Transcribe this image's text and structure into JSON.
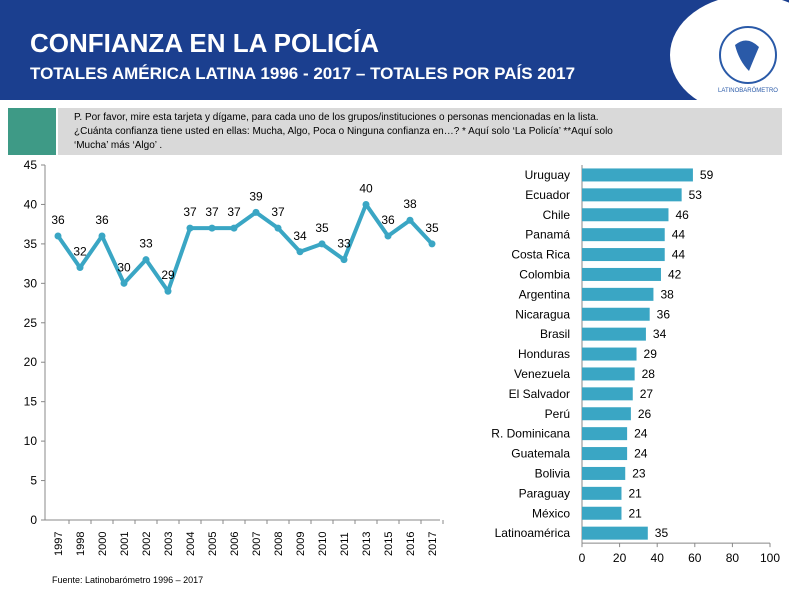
{
  "header": {
    "title": "CONFIANZA EN LA POLICÍA",
    "subtitle": "TOTALES AMÉRICA LATINA 1996 - 2017 – TOTALES POR PAÍS 2017",
    "logo": "LATINOBARÓMETRO",
    "question": [
      "P. Por favor, mire esta tarjeta y dígame, para cada uno de los grupos/instituciones o personas mencionadas en la lista.",
      "¿Cuánta confianza tiene usted en ellas: Mucha, Algo, Poca o Ninguna confianza en…? * Aquí solo ‘La Policía’ **Aquí solo",
      "‘Mucha’ más ‘Algo’ ."
    ],
    "source": "Fuente: Latinobarómetro 1996 – 2017"
  },
  "chart_data": [
    {
      "type": "line",
      "color": "#3aa6c4",
      "categories": [
        "1997",
        "1998",
        "2000",
        "2001",
        "2002",
        "2003",
        "2004",
        "2005",
        "2006",
        "2007",
        "2008",
        "2009",
        "2010",
        "2011",
        "2013",
        "2015",
        "2016",
        "2017"
      ],
      "values": [
        36,
        32,
        36,
        30,
        33,
        29,
        37,
        37,
        37,
        39,
        37,
        34,
        35,
        33,
        40,
        36,
        38,
        35
      ],
      "ylim": [
        0,
        45
      ],
      "yticks": [
        0,
        5,
        10,
        15,
        20,
        25,
        30,
        35,
        40,
        45
      ]
    },
    {
      "type": "hbar",
      "color": "#3aa6c4",
      "categories": [
        "Uruguay",
        "Ecuador",
        "Chile",
        "Panamá",
        "Costa Rica",
        "Colombia",
        "Argentina",
        "Nicaragua",
        "Brasil",
        "Honduras",
        "Venezuela",
        "El Salvador",
        "Perú",
        "R. Dominicana",
        "Guatemala",
        "Bolivia",
        "Paraguay",
        "México",
        "Latinoamérica"
      ],
      "values": [
        59,
        53,
        46,
        44,
        44,
        42,
        38,
        36,
        34,
        29,
        28,
        27,
        26,
        24,
        24,
        23,
        21,
        21,
        35
      ],
      "xlim": [
        0,
        100
      ],
      "xticks": [
        0,
        20,
        40,
        60,
        80,
        100
      ]
    }
  ]
}
